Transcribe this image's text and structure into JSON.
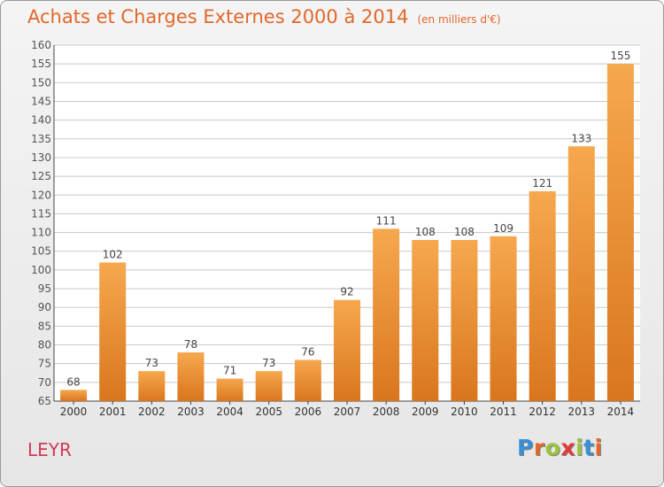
{
  "title": "Achats et Charges Externes 2000 à 2014",
  "unit_note": "(en milliers d'€)",
  "commune": "LEYR",
  "logo": {
    "text": "Proxiti",
    "letters": [
      {
        "ch": "P",
        "color": "#3a8fd6"
      },
      {
        "ch": "r",
        "color": "#e2672a"
      },
      {
        "ch": "o",
        "color": "#9bc53d"
      },
      {
        "ch": "x",
        "color": "#e23a3a"
      },
      {
        "ch": "i",
        "color": "#9bc53d"
      },
      {
        "ch": "t",
        "color": "#3a8fd6"
      },
      {
        "ch": "i",
        "color": "#e2672a"
      }
    ]
  },
  "colors": {
    "bar_light": "#f6a84f",
    "bar_dark": "#d9761d",
    "title": "#e2672a",
    "commune": "#d23a55",
    "grid": "#c8c8c8"
  },
  "chart_data": {
    "type": "bar",
    "title": "Achats et Charges Externes 2000 à 2014",
    "subtitle": "(en milliers d'€)",
    "xlabel": "",
    "ylabel": "",
    "categories": [
      "2000",
      "2001",
      "2002",
      "2003",
      "2004",
      "2005",
      "2006",
      "2007",
      "2008",
      "2009",
      "2010",
      "2011",
      "2012",
      "2013",
      "2014"
    ],
    "values": [
      68,
      102,
      73,
      78,
      71,
      73,
      76,
      92,
      111,
      108,
      108,
      109,
      121,
      133,
      155
    ],
    "ylim": [
      65,
      160
    ],
    "yticks": [
      65,
      70,
      75,
      80,
      85,
      90,
      95,
      100,
      105,
      110,
      115,
      120,
      125,
      130,
      135,
      140,
      145,
      150,
      155,
      160
    ],
    "grid": true,
    "data_labels": true
  }
}
